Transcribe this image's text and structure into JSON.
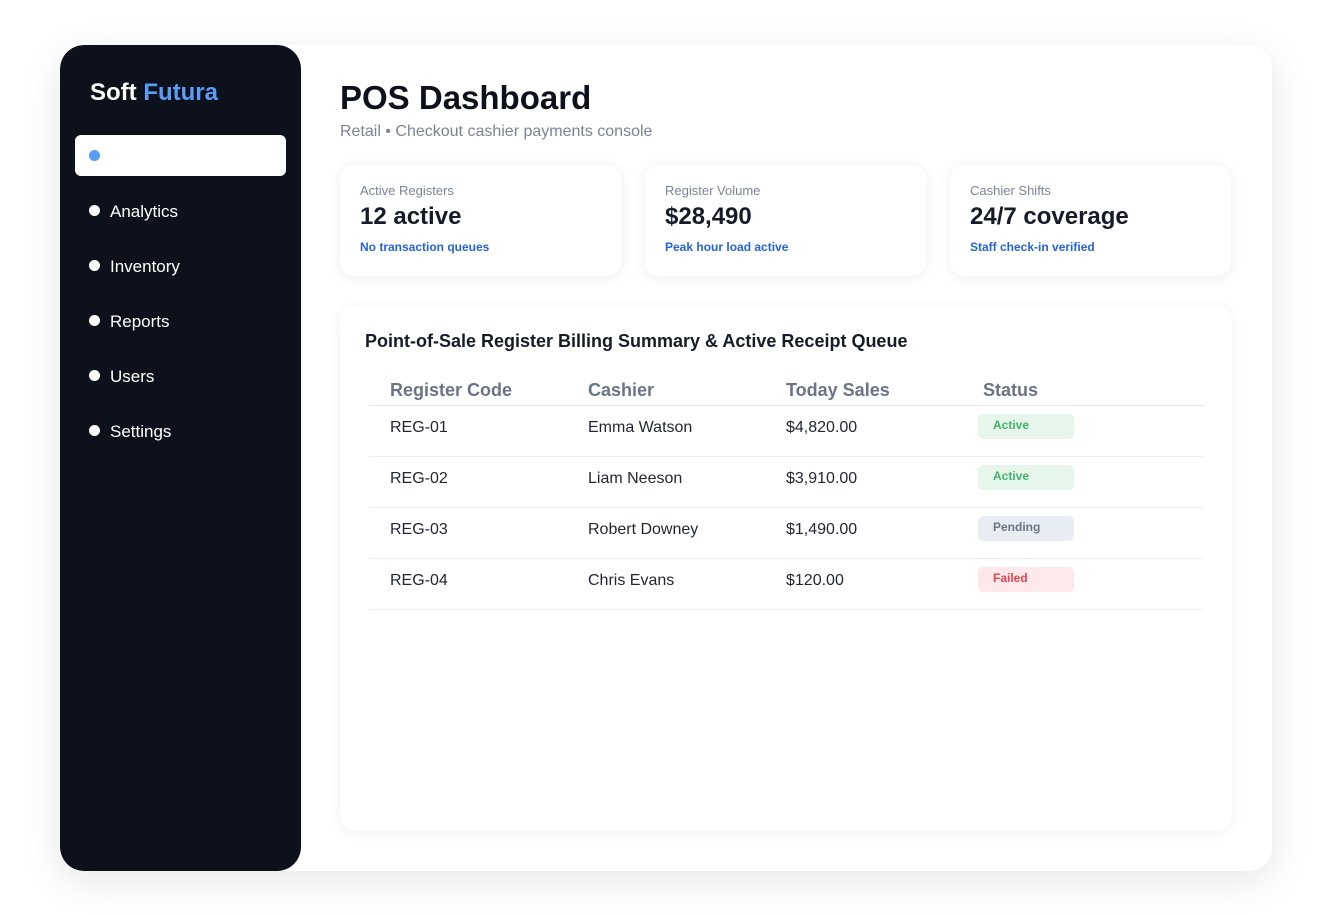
{
  "brand": {
    "name_part1": "Soft",
    "name_part2": "Futura"
  },
  "sidebar": {
    "items": [
      {
        "label": "",
        "active": true
      },
      {
        "label": "Analytics",
        "active": false
      },
      {
        "label": "Inventory",
        "active": false
      },
      {
        "label": "Reports",
        "active": false
      },
      {
        "label": "Users",
        "active": false
      },
      {
        "label": "Settings",
        "active": false
      }
    ]
  },
  "header": {
    "title": "POS Dashboard",
    "subtitle": "Retail • Checkout cashier payments console"
  },
  "stats": [
    {
      "label": "Active Registers",
      "value": "12 active",
      "note": "No transaction queues"
    },
    {
      "label": "Register Volume",
      "value": "$28,490",
      "note": "Peak hour load active"
    },
    {
      "label": "Cashier Shifts",
      "value": "24/7 coverage",
      "note": "Staff check-in verified"
    }
  ],
  "table": {
    "title": "Point-of-Sale Register Billing Summary & Active Receipt Queue",
    "columns": [
      "Register Code",
      "Cashier",
      "Today Sales",
      "Status"
    ],
    "rows": [
      {
        "code": "REG-01",
        "cashier": "Emma Watson",
        "sales": "$4,820.00",
        "status": "Active",
        "status_kind": "active"
      },
      {
        "code": "REG-02",
        "cashier": "Liam Neeson",
        "sales": "$3,910.00",
        "status": "Active",
        "status_kind": "active"
      },
      {
        "code": "REG-03",
        "cashier": "Robert Downey",
        "sales": "$1,490.00",
        "status": "Pending",
        "status_kind": "pending"
      },
      {
        "code": "REG-04",
        "cashier": "Chris Evans",
        "sales": "$120.00",
        "status": "Failed",
        "status_kind": "failed"
      }
    ]
  },
  "colors": {
    "sidebar_bg": "#0d111b",
    "accent": "#5b9cf5",
    "note_blue": "#2563d8",
    "status_active": "#45b26b",
    "status_pending": "#6b7487",
    "status_failed": "#e0464f"
  }
}
